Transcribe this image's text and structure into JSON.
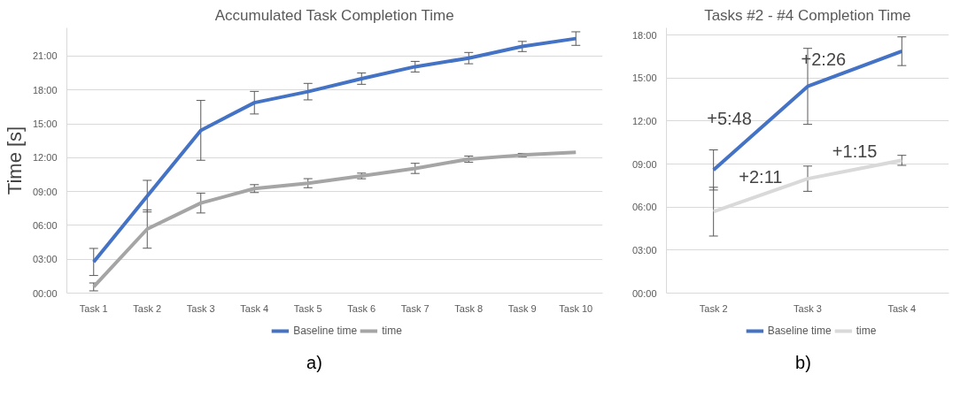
{
  "chart_data": [
    {
      "type": "line",
      "title": "Accumulated Task Completion Time",
      "ylabel": "Time [s]",
      "categories": [
        "Task 1",
        "Task 2",
        "Task 3",
        "Task 4",
        "Task 5",
        "Task 6",
        "Task 7",
        "Task 8",
        "Task 9",
        "Task 10"
      ],
      "series": [
        {
          "name": "Baseline time",
          "color": "#4472c4",
          "values": [
            2.76,
            8.59,
            14.42,
            16.87,
            17.85,
            19.0,
            20.06,
            20.82,
            21.85,
            22.55
          ],
          "errors": [
            1.2,
            1.4,
            2.65,
            1.0,
            0.73,
            0.5,
            0.47,
            0.5,
            0.45,
            0.6
          ]
        },
        {
          "name": "time",
          "color": "#a5a5a5",
          "values": [
            0.55,
            5.68,
            7.98,
            9.26,
            9.74,
            10.38,
            11.05,
            11.87,
            12.23,
            12.47
          ],
          "errors": [
            0.35,
            1.7,
            0.88,
            0.35,
            0.4,
            0.25,
            0.45,
            0.27,
            0.15,
            null
          ]
        }
      ],
      "ylim": [
        0,
        23.5
      ],
      "yticks": [
        {
          "value": 0,
          "label": "00:00"
        },
        {
          "value": 3,
          "label": "03:00"
        },
        {
          "value": 6,
          "label": "06:00"
        },
        {
          "value": 9,
          "label": "09:00"
        },
        {
          "value": 12,
          "label": "12:00"
        },
        {
          "value": 15,
          "label": "15:00"
        },
        {
          "value": 18,
          "label": "18:00"
        },
        {
          "value": 21,
          "label": "21:00"
        }
      ],
      "grid": "y",
      "legend": "bottom",
      "annotations": [
        "a)"
      ]
    },
    {
      "type": "line",
      "title": "Tasks #2 - #4 Completion Time",
      "categories": [
        "Task 2",
        "Task 3",
        "Task 4"
      ],
      "series": [
        {
          "name": "Baseline time",
          "color": "#4472c4",
          "values": [
            8.59,
            14.42,
            16.87
          ],
          "errors": [
            1.4,
            2.65,
            1.0
          ]
        },
        {
          "name": "time",
          "color": "#d9d9d9",
          "values": [
            5.68,
            7.98,
            9.26
          ],
          "errors": [
            1.7,
            0.88,
            0.35
          ]
        }
      ],
      "ylim": [
        0,
        18.5
      ],
      "yticks": [
        {
          "value": 0,
          "label": "00:00"
        },
        {
          "value": 3,
          "label": "03:00"
        },
        {
          "value": 6,
          "label": "06:00"
        },
        {
          "value": 9,
          "label": "09:00"
        },
        {
          "value": 12,
          "label": "12:00"
        },
        {
          "value": 15,
          "label": "15:00"
        },
        {
          "value": 18,
          "label": "18:00"
        }
      ],
      "grid": "y",
      "legend": "bottom",
      "annotations": [
        "+5:48",
        "+2:26",
        "+2:11",
        "+1:15",
        "b)"
      ]
    }
  ]
}
